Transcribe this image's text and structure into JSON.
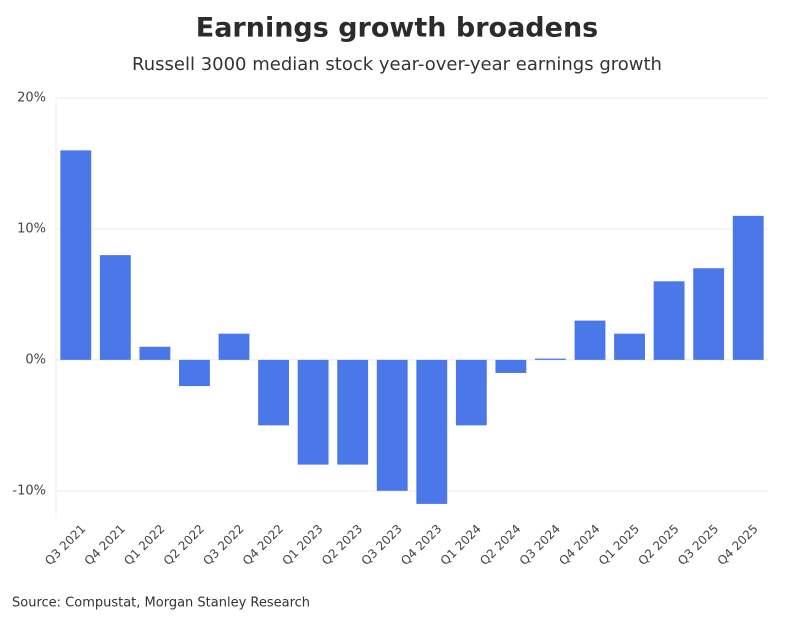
{
  "chart_data": {
    "type": "bar",
    "title": "Earnings growth broadens",
    "subtitle": "Russell 3000 median stock year-over-year earnings growth",
    "source": "Source: Compustat, Morgan Stanley Research",
    "categories": [
      "Q3 2021",
      "Q4 2021",
      "Q1 2022",
      "Q2 2022",
      "Q3 2022",
      "Q4 2022",
      "Q1 2023",
      "Q2 2023",
      "Q3 2023",
      "Q4 2023",
      "Q1 2024",
      "Q2 2024",
      "Q3 2024",
      "Q4 2024",
      "Q1 2025",
      "Q2 2025",
      "Q3 2025",
      "Q4 2025"
    ],
    "values": [
      16,
      8,
      1,
      -2,
      2,
      -5,
      -8,
      -8,
      -10,
      -11,
      -5,
      -1,
      0.1,
      3,
      2,
      6,
      7,
      11
    ],
    "color": "#4a78e8",
    "ylim": [
      -12,
      20
    ],
    "yticks": [
      {
        "value": -10,
        "label": "-10%"
      },
      {
        "value": 0,
        "label": "0%"
      },
      {
        "value": 10,
        "label": "10%"
      },
      {
        "value": 20,
        "label": "20%"
      }
    ],
    "grid": true
  }
}
